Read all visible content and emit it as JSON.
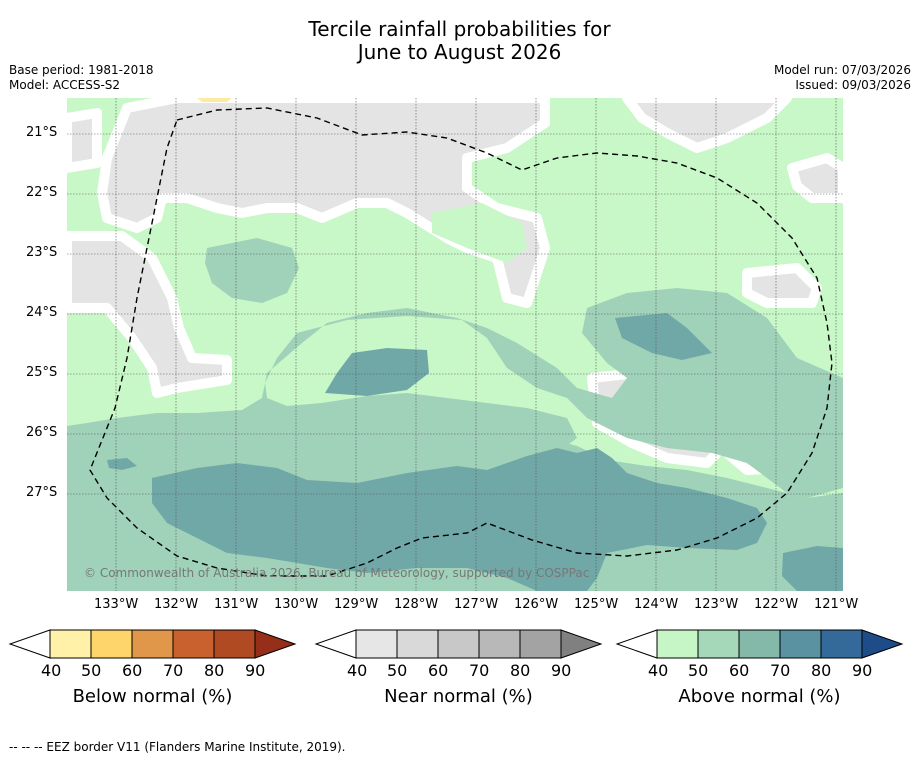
{
  "header": {
    "title_line1": "Tercile rainfall probabilities for",
    "title_line2": "June to August 2026",
    "base_period": "Base period: 1981-2018",
    "model": "Model: ACCESS-S2",
    "model_run": "Model run: 07/03/2026",
    "issued": "Issued: 09/03/2026"
  },
  "map": {
    "lat_labels": [
      "21°S",
      "22°S",
      "23°S",
      "24°S",
      "25°S",
      "26°S",
      "27°S"
    ],
    "lon_labels": [
      "133°W",
      "132°W",
      "131°W",
      "130°W",
      "129°W",
      "128°W",
      "127°W",
      "126°W",
      "125°W",
      "124°W",
      "123°W",
      "122°W",
      "121°W"
    ],
    "copyright": "© Commonwealth of Australia 2026, Bureau of Meteorology, supported by COSPPac",
    "colors": {
      "near_40": "#e4e4e4",
      "above_40": "#c8f7c8",
      "above_50": "#9fd2b8",
      "above_60": "#70a8a8",
      "below_40": "#fde9a0"
    }
  },
  "legends": [
    {
      "label": "Below normal (%)",
      "ticks": [
        "40",
        "50",
        "60",
        "70",
        "80",
        "90"
      ],
      "colors": [
        "#fff2a8",
        "#fdd56a",
        "#e1974a",
        "#c9612e",
        "#b04a22",
        "#962f1a"
      ]
    },
    {
      "label": "Near normal (%)",
      "ticks": [
        "40",
        "50",
        "60",
        "70",
        "80",
        "90"
      ],
      "colors": [
        "#e6e6e6",
        "#d9d9d9",
        "#c8c8c8",
        "#b8b8b8",
        "#a3a3a3",
        "#808080"
      ]
    },
    {
      "label": "Above normal (%)",
      "ticks": [
        "40",
        "50",
        "60",
        "70",
        "80",
        "90"
      ],
      "colors": [
        "#c6f5c6",
        "#a4d8b8",
        "#84b8a8",
        "#5a92a2",
        "#336a9a",
        "#1e4c88"
      ]
    }
  ],
  "footnote": "--  --  -- EEZ border V11 (Flanders Marine Institute, 2019)."
}
